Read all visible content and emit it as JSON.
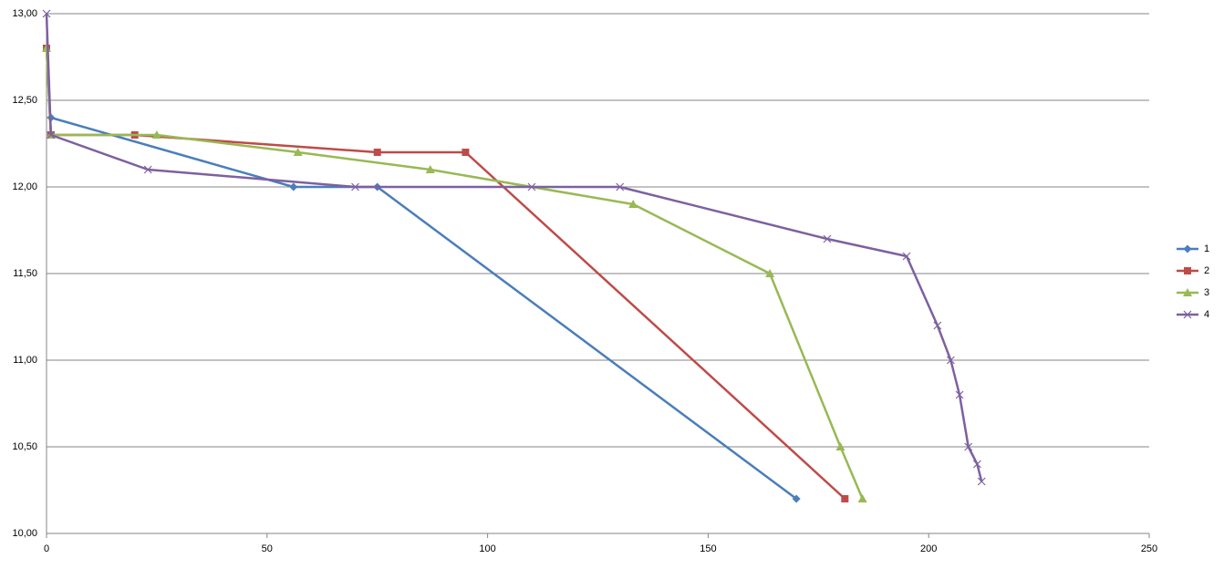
{
  "chart_data": {
    "type": "scatter-line",
    "xlim": [
      0,
      250
    ],
    "xticks": [
      0,
      50,
      100,
      150,
      200,
      250
    ],
    "ylim": [
      10,
      13
    ],
    "yticks": [
      {
        "value": 10,
        "label": "10,00"
      },
      {
        "value": 10.5,
        "label": "10,50"
      },
      {
        "value": 11,
        "label": "11,00"
      },
      {
        "value": 11.5,
        "label": "11,50"
      },
      {
        "value": 12,
        "label": "12,00"
      },
      {
        "value": 12.5,
        "label": "12,50"
      },
      {
        "value": 13,
        "label": "13,00"
      }
    ],
    "grid": true,
    "legend": "right",
    "series": [
      {
        "name": "1",
        "color": "#4a7ebb",
        "marker": "diamond",
        "x": [
          1,
          56,
          75,
          170
        ],
        "values": [
          12.4,
          12,
          12,
          10.2
        ]
      },
      {
        "name": "2",
        "color": "#be4b48",
        "marker": "square",
        "x": [
          0,
          1,
          20,
          75,
          95,
          181
        ],
        "values": [
          12.8,
          12.3,
          12.3,
          12.2,
          12.2,
          10.2
        ]
      },
      {
        "name": "3",
        "color": "#98b954",
        "marker": "triangle",
        "x": [
          0,
          1,
          25,
          57,
          87,
          133,
          164,
          180,
          185
        ],
        "values": [
          12.8,
          12.3,
          12.3,
          12.2,
          12.1,
          11.9,
          11.5,
          10.5,
          10.2
        ]
      },
      {
        "name": "4",
        "color": "#7d60a0",
        "marker": "x",
        "x": [
          0,
          1,
          23,
          70,
          110,
          130,
          177,
          195,
          202,
          205,
          207,
          209,
          211,
          212
        ],
        "values": [
          13,
          12.3,
          12.1,
          12,
          12,
          12,
          11.7,
          11.6,
          11.2,
          11,
          10.8,
          10.5,
          10.4,
          10.3
        ]
      }
    ]
  }
}
